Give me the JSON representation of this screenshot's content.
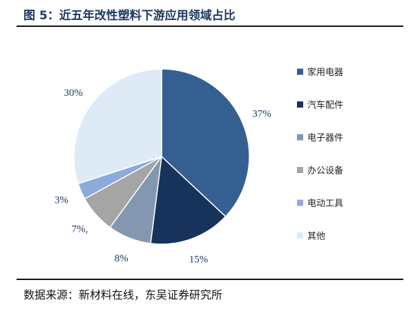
{
  "figure": {
    "title": "图 5：近五年改性塑料下游应用领域占比",
    "source": "数据来源：新材料在线，东吴证券研究所"
  },
  "chart_data": {
    "type": "pie",
    "title": "",
    "legend_position": "right",
    "categories": [
      "家用电器",
      "汽车配件",
      "电子器件",
      "办公设备",
      "电动工具",
      "其他"
    ],
    "values": [
      37,
      15,
      8,
      7,
      3,
      30
    ],
    "data_labels": [
      "37%",
      "15%",
      "8%",
      "7%,",
      "3%",
      "30%"
    ],
    "colors": [
      "#355f91",
      "#17335b",
      "#8497b0",
      "#a5a5a5",
      "#8eaadb",
      "#deebf7"
    ]
  }
}
